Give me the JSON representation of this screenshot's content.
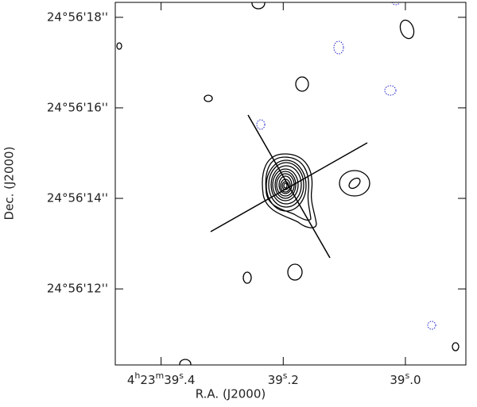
{
  "chart_data": {
    "type": "contour",
    "x_label": "R.A. (J2000)",
    "y_label": "Dec. (J2000)",
    "xlim": [
      39.475,
      38.901
    ],
    "ylim": [
      10.32,
      18.33
    ],
    "xticks": [
      {
        "value": 39.4,
        "label": "4h23m39s.4"
      },
      {
        "value": 39.2,
        "label": "39s.2"
      },
      {
        "value": 39.0,
        "label": "39s.0"
      }
    ],
    "yticks": [
      {
        "value": 18,
        "label": "24°56'18''"
      },
      {
        "value": 16,
        "label": "24°56'16''"
      },
      {
        "value": 14,
        "label": "24°56'14''"
      },
      {
        "value": 12,
        "label": "24°56'12''"
      }
    ]
  }
}
